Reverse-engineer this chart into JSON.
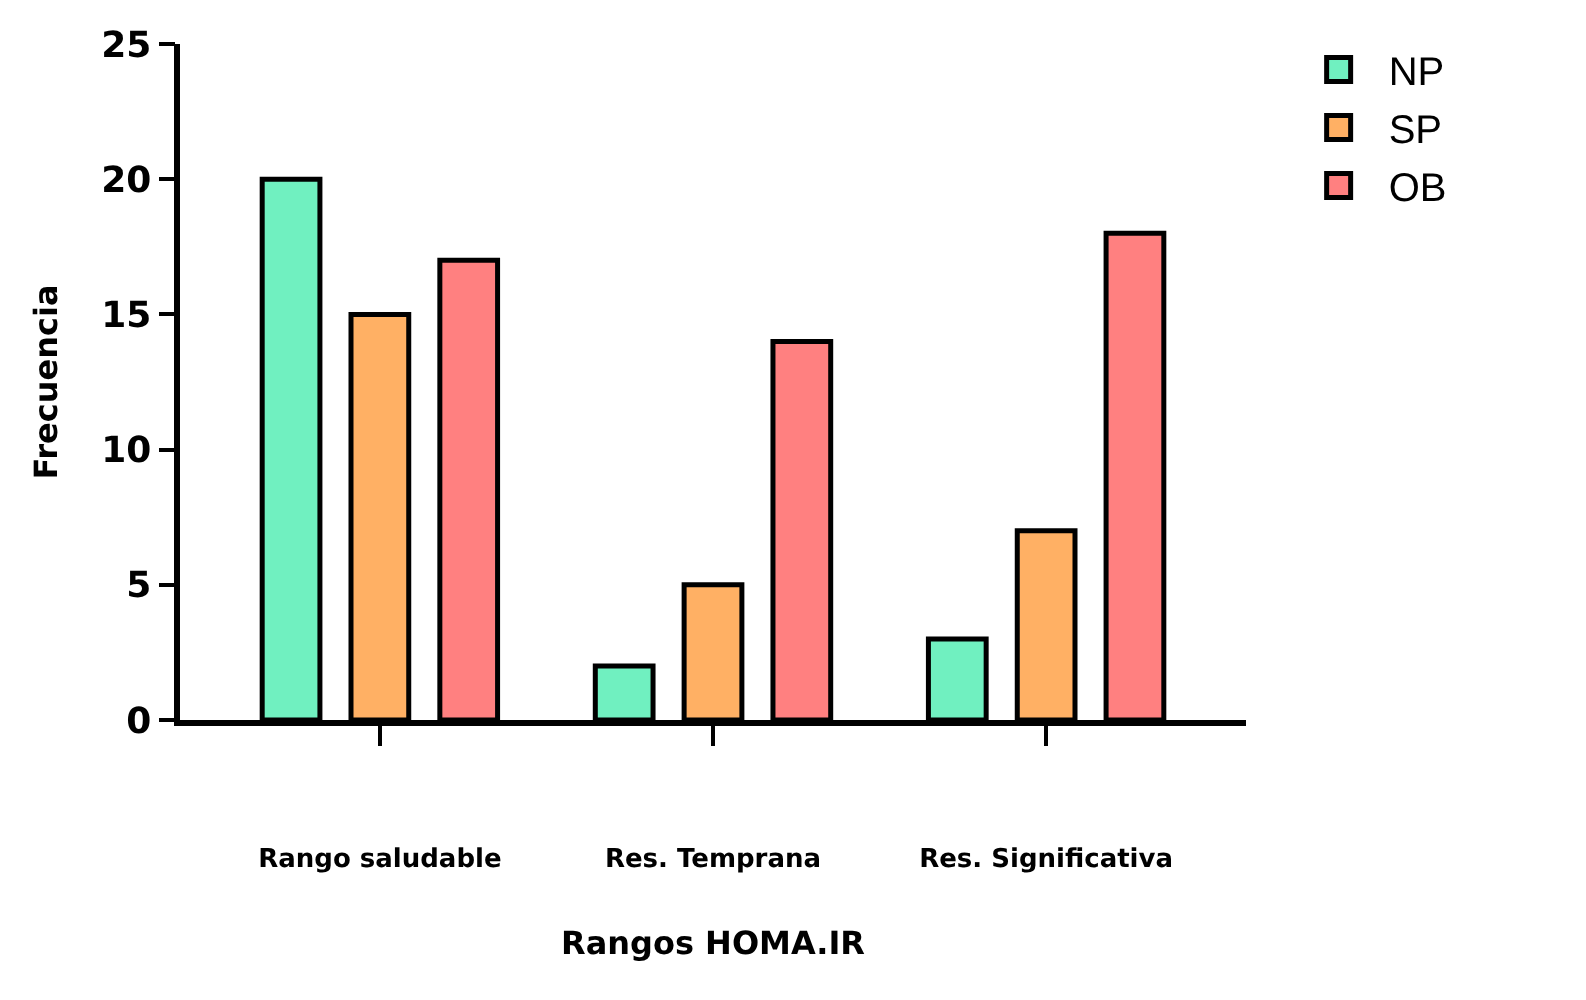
{
  "chart_data": {
    "type": "bar",
    "xlabel": "Rangos HOMA.IR",
    "ylabel": "Frecuencia",
    "categories": [
      "Rango saludable",
      "Res. Temprana",
      "Res. Significativa"
    ],
    "series": [
      {
        "name": "NP",
        "color": "#70f0c0",
        "values": [
          20,
          2,
          3
        ]
      },
      {
        "name": "SP",
        "color": "#ffb064",
        "values": [
          15,
          5,
          7
        ]
      },
      {
        "name": "OB",
        "color": "#ff8080",
        "values": [
          17,
          14,
          18
        ]
      }
    ],
    "ylim": [
      0,
      25
    ],
    "yticks": [
      0,
      5,
      10,
      15,
      20,
      25
    ],
    "legend": "top right"
  }
}
